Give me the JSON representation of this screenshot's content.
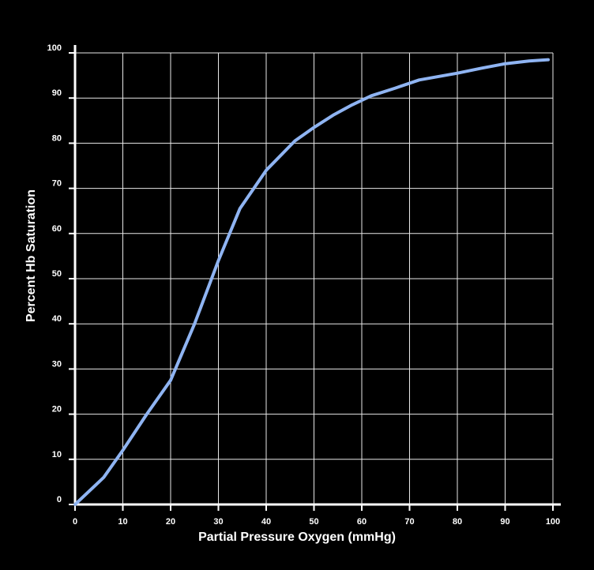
{
  "chart_data": {
    "type": "line",
    "title": "",
    "xlabel": "Partial Pressure Oxygen (mmHg)",
    "ylabel": "Percent Hb Saturation",
    "xlim": [
      0,
      100
    ],
    "ylim": [
      0,
      100
    ],
    "x_ticks": [
      "0",
      "10",
      "20",
      "30",
      "40",
      "50",
      "60",
      "70",
      "80",
      "90",
      "100"
    ],
    "y_ticks": [
      "0",
      "10",
      "20",
      "30",
      "40",
      "50",
      "60",
      "70",
      "80",
      "90",
      "100"
    ],
    "grid": true,
    "legend": "none",
    "series": [
      {
        "color": "#8fb4f2",
        "x": [
          0,
          6,
          10,
          15,
          20,
          25,
          30,
          34.5,
          40,
          46,
          50,
          54,
          58,
          62,
          67,
          72,
          80,
          85,
          90,
          95,
          99
        ],
        "y": [
          0,
          6,
          12,
          20,
          27.5,
          40,
          54,
          65.5,
          74,
          80.5,
          83.5,
          86.2,
          88.5,
          90.5,
          92.2,
          94,
          95.5,
          96.6,
          97.6,
          98.2,
          98.5
        ]
      }
    ]
  },
  "colors": {
    "background": "#000000",
    "grid": "#e8e8e8",
    "axis": "#ffffff",
    "text": "#ffffff"
  }
}
